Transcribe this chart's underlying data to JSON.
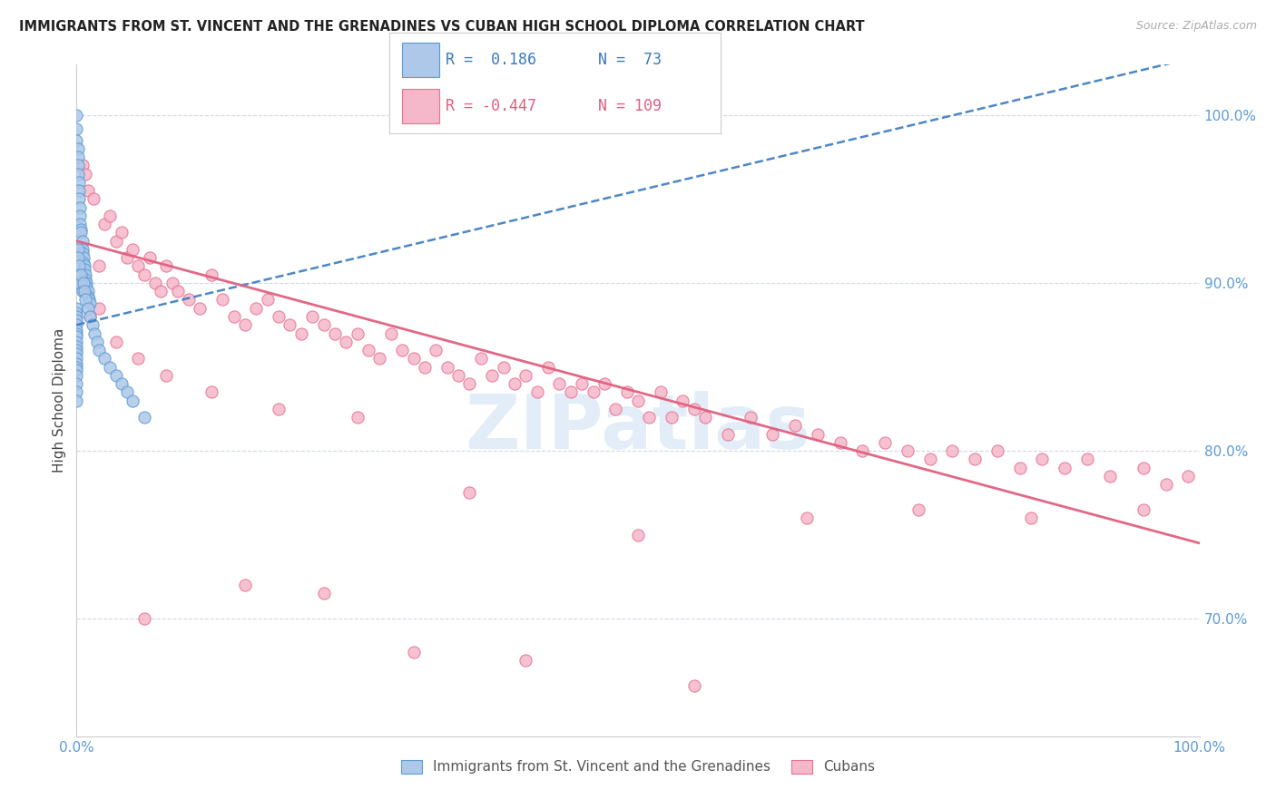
{
  "title": "IMMIGRANTS FROM ST. VINCENT AND THE GRENADINES VS CUBAN HIGH SCHOOL DIPLOMA CORRELATION CHART",
  "source": "Source: ZipAtlas.com",
  "ylabel": "High School Diploma",
  "right_yticks": [
    70.0,
    80.0,
    90.0,
    100.0
  ],
  "legend_blue_label": "Immigrants from St. Vincent and the Grenadines",
  "legend_pink_label": "Cubans",
  "blue_color": "#adc8e8",
  "pink_color": "#f5b8ca",
  "blue_edge_color": "#5b9bd5",
  "pink_edge_color": "#e87090",
  "blue_line_color": "#3a7abf",
  "pink_line_color": "#e06080",
  "background_color": "#ffffff",
  "grid_color": "#d0d8e8",
  "title_color": "#222222",
  "source_color": "#aaaaaa",
  "axis_label_color": "#5b9bd5",
  "watermark_color": "#c8dcf0",
  "legend_text_blue_color": "#3a7abf",
  "legend_text_pink_color": "#e06080",
  "blue_r_text": "R =  0.186",
  "blue_n_text": "N =  73",
  "pink_r_text": "R = -0.447",
  "pink_n_text": "N = 109",
  "xlim": [
    0,
    100
  ],
  "ylim": [
    63,
    103
  ],
  "blue_line_x": [
    0,
    100
  ],
  "blue_line_y": [
    87.5,
    103.5
  ],
  "pink_line_x": [
    0,
    100
  ],
  "pink_line_y": [
    92.5,
    74.5
  ],
  "blue_scatter_x": [
    0.0,
    0.0,
    0.0,
    0.1,
    0.1,
    0.1,
    0.1,
    0.2,
    0.2,
    0.2,
    0.3,
    0.3,
    0.3,
    0.4,
    0.4,
    0.5,
    0.5,
    0.5,
    0.6,
    0.6,
    0.7,
    0.7,
    0.8,
    0.8,
    0.9,
    0.9,
    1.0,
    1.0,
    1.1,
    1.2,
    0.0,
    0.0,
    0.0,
    0.0,
    0.0,
    0.0,
    0.0,
    0.0,
    0.0,
    0.0,
    0.0,
    0.0,
    0.0,
    0.0,
    0.0,
    0.0,
    0.0,
    0.0,
    0.0,
    0.0,
    0.1,
    0.1,
    0.2,
    0.2,
    0.3,
    0.4,
    0.5,
    0.6,
    0.7,
    0.8,
    1.0,
    1.2,
    1.4,
    1.6,
    1.8,
    2.0,
    2.5,
    3.0,
    3.5,
    4.0,
    4.5,
    5.0,
    6.0
  ],
  "blue_scatter_y": [
    100.0,
    99.2,
    98.5,
    98.0,
    97.5,
    97.0,
    96.5,
    96.0,
    95.5,
    95.0,
    94.5,
    94.0,
    93.5,
    93.2,
    93.0,
    92.5,
    92.0,
    91.8,
    91.5,
    91.2,
    91.0,
    90.8,
    90.5,
    90.2,
    90.0,
    89.8,
    89.5,
    89.2,
    89.0,
    88.8,
    88.5,
    88.2,
    88.0,
    87.8,
    87.5,
    87.2,
    87.0,
    86.8,
    86.5,
    86.2,
    86.0,
    85.8,
    85.5,
    85.2,
    85.0,
    84.8,
    84.5,
    84.0,
    83.5,
    83.0,
    92.0,
    91.5,
    91.0,
    90.5,
    90.0,
    90.5,
    89.5,
    90.0,
    89.5,
    89.0,
    88.5,
    88.0,
    87.5,
    87.0,
    86.5,
    86.0,
    85.5,
    85.0,
    84.5,
    84.0,
    83.5,
    83.0,
    82.0
  ],
  "pink_scatter_x": [
    0.5,
    0.8,
    1.0,
    1.5,
    2.0,
    2.5,
    3.0,
    3.5,
    4.0,
    4.5,
    5.0,
    5.5,
    6.0,
    6.5,
    7.0,
    7.5,
    8.0,
    8.5,
    9.0,
    10.0,
    11.0,
    12.0,
    13.0,
    14.0,
    15.0,
    16.0,
    17.0,
    18.0,
    19.0,
    20.0,
    21.0,
    22.0,
    23.0,
    24.0,
    25.0,
    26.0,
    27.0,
    28.0,
    29.0,
    30.0,
    31.0,
    32.0,
    33.0,
    34.0,
    35.0,
    36.0,
    37.0,
    38.0,
    39.0,
    40.0,
    41.0,
    42.0,
    43.0,
    44.0,
    45.0,
    46.0,
    47.0,
    48.0,
    49.0,
    50.0,
    51.0,
    52.0,
    53.0,
    54.0,
    55.0,
    56.0,
    58.0,
    60.0,
    62.0,
    64.0,
    66.0,
    68.0,
    70.0,
    72.0,
    74.0,
    76.0,
    78.0,
    80.0,
    82.0,
    84.0,
    86.0,
    88.0,
    90.0,
    92.0,
    95.0,
    97.0,
    99.0,
    0.3,
    0.6,
    1.2,
    2.0,
    3.5,
    5.5,
    8.0,
    12.0,
    18.0,
    25.0,
    35.0,
    50.0,
    65.0,
    75.0,
    85.0,
    95.0,
    6.0,
    15.0,
    22.0,
    30.0,
    40.0,
    55.0
  ],
  "pink_scatter_y": [
    97.0,
    96.5,
    95.5,
    95.0,
    91.0,
    93.5,
    94.0,
    92.5,
    93.0,
    91.5,
    92.0,
    91.0,
    90.5,
    91.5,
    90.0,
    89.5,
    91.0,
    90.0,
    89.5,
    89.0,
    88.5,
    90.5,
    89.0,
    88.0,
    87.5,
    88.5,
    89.0,
    88.0,
    87.5,
    87.0,
    88.0,
    87.5,
    87.0,
    86.5,
    87.0,
    86.0,
    85.5,
    87.0,
    86.0,
    85.5,
    85.0,
    86.0,
    85.0,
    84.5,
    84.0,
    85.5,
    84.5,
    85.0,
    84.0,
    84.5,
    83.5,
    85.0,
    84.0,
    83.5,
    84.0,
    83.5,
    84.0,
    82.5,
    83.5,
    83.0,
    82.0,
    83.5,
    82.0,
    83.0,
    82.5,
    82.0,
    81.0,
    82.0,
    81.0,
    81.5,
    81.0,
    80.5,
    80.0,
    80.5,
    80.0,
    79.5,
    80.0,
    79.5,
    80.0,
    79.0,
    79.5,
    79.0,
    79.5,
    78.5,
    79.0,
    78.0,
    78.5,
    90.0,
    89.5,
    88.0,
    88.5,
    86.5,
    85.5,
    84.5,
    83.5,
    82.5,
    82.0,
    77.5,
    75.0,
    76.0,
    76.5,
    76.0,
    76.5,
    70.0,
    72.0,
    71.5,
    68.0,
    67.5,
    66.0
  ]
}
